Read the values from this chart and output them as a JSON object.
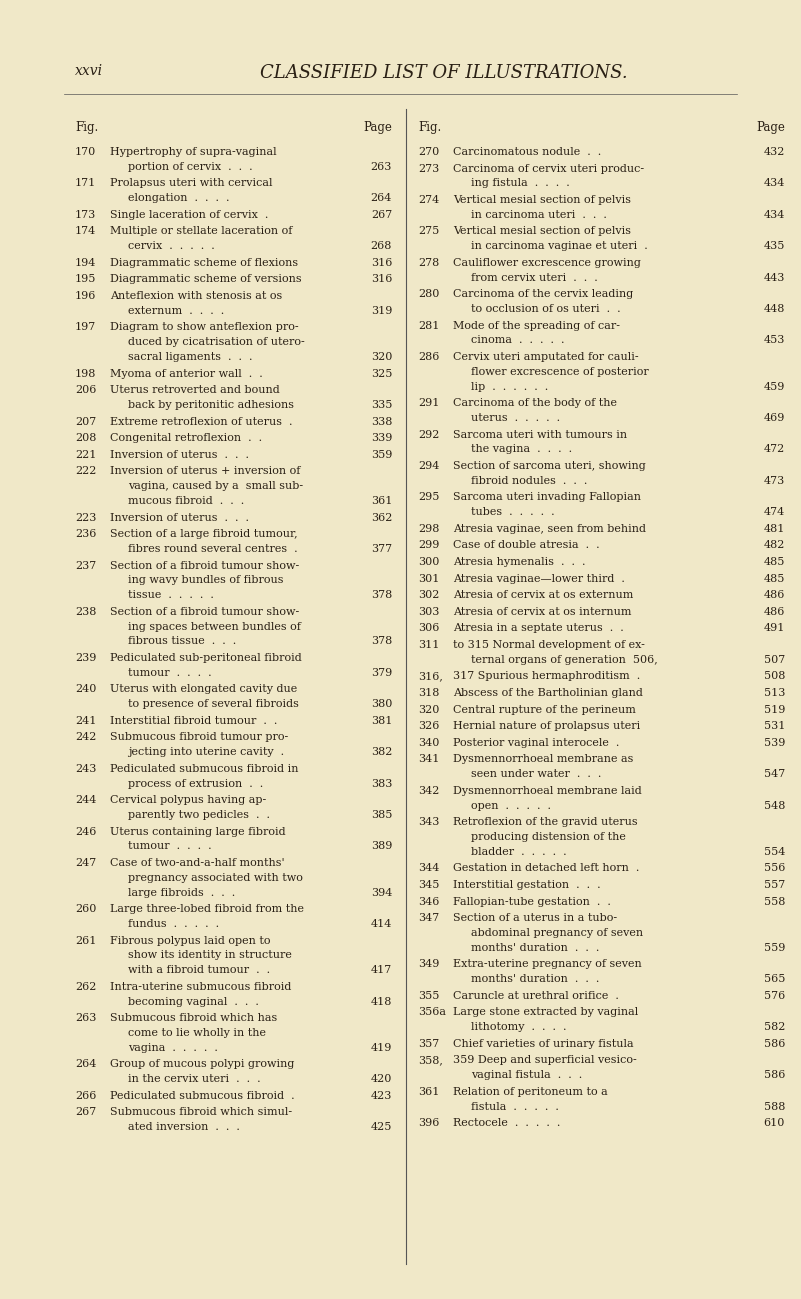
{
  "background_color": "#f0e8c8",
  "page_header_left": "xxvi",
  "page_header_center": "CLASSIFIED LIST OF ILLUSTRATIONS.",
  "left_entries": [
    [
      "170",
      "Hypertrophy of supra-vaginal\nportion of cervix  .  .  .",
      "263"
    ],
    [
      "171",
      "Prolapsus uteri with cervical\nelongation  .  .  .  .",
      "264"
    ],
    [
      "173",
      "Single laceration of cervix  .",
      "267"
    ],
    [
      "174",
      "Multiple or stellate laceration of\ncervix  .  .  .  .  .",
      "268"
    ],
    [
      "194",
      "Diagrammatic scheme of flexions",
      "316"
    ],
    [
      "195",
      "Diagrammatic scheme of versions",
      "316"
    ],
    [
      "196",
      "Anteflexion with stenosis at os\nexternum  .  .  .  .",
      "319"
    ],
    [
      "197",
      "Diagram to show anteflexion pro-\nduced by cicatrisation of utero-\nsacral ligaments  .  .  .",
      "320"
    ],
    [
      "198",
      "Myoma of anterior wall  .  .",
      "325"
    ],
    [
      "206",
      "Uterus retroverted and bound\nback by peritonitic adhesions",
      "335"
    ],
    [
      "207",
      "Extreme retroflexion of uterus  .",
      "338"
    ],
    [
      "208",
      "Congenital retroflexion  .  .",
      "339"
    ],
    [
      "221",
      "Inversion of uterus  .  .  .",
      "359"
    ],
    [
      "222",
      "Inversion of uterus + inversion of\nvagina, caused by a  small sub-\nmucous fibroid  .  .  .",
      "361"
    ],
    [
      "223",
      "Inversion of uterus  .  .  .",
      "362"
    ],
    [
      "236",
      "Section of a large fibroid tumour,\nfibres round several centres  .",
      "377"
    ],
    [
      "237",
      "Section of a fibroid tumour show-\ning wavy bundles of fibrous\ntissue  .  .  .  .  .",
      "378"
    ],
    [
      "238",
      "Section of a fibroid tumour show-\ning spaces between bundles of\nfibrous tissue  .  .  .",
      "378"
    ],
    [
      "239",
      "Pediculated sub-peritoneal fibroid\ntumour  .  .  .  .",
      "379"
    ],
    [
      "240",
      "Uterus with elongated cavity due\nto presence of several fibroids",
      "380"
    ],
    [
      "241",
      "Interstitial fibroid tumour  .  .",
      "381"
    ],
    [
      "242",
      "Submucous fibroid tumour pro-\njecting into uterine cavity  .",
      "382"
    ],
    [
      "243",
      "Pediculated submucous fibroid in\nprocess of extrusion  .  .",
      "383"
    ],
    [
      "244",
      "Cervical polypus having ap-\nparently two pedicles  .  .",
      "385"
    ],
    [
      "246",
      "Uterus containing large fibroid\ntumour  .  .  .  .",
      "389"
    ],
    [
      "247",
      "Case of two-and-a-half months'\npregnancy associated with two\nlarge fibroids  .  .  .",
      "394"
    ],
    [
      "260",
      "Large three-lobed fibroid from the\nfundus  .  .  .  .  .",
      "414"
    ],
    [
      "261",
      "Fibrous polypus laid open to\nshow its identity in structure\nwith a fibroid tumour  .  .",
      "417"
    ],
    [
      "262",
      "Intra-uterine submucous fibroid\nbecoming vaginal  .  .  .",
      "418"
    ],
    [
      "263",
      "Submucous fibroid which has\ncome to lie wholly in the\nvagina  .  .  .  .  .",
      "419"
    ],
    [
      "264",
      "Group of mucous polypi growing\nin the cervix uteri  .  .  .",
      "420"
    ],
    [
      "266",
      "Pediculated submucous fibroid  .",
      "423"
    ],
    [
      "267",
      "Submucous fibroid which simul-\nated inversion  .  .  .",
      "425"
    ]
  ],
  "right_entries": [
    [
      "270",
      "Carcinomatous nodule  .  .",
      "432"
    ],
    [
      "273",
      "Carcinoma of cervix uteri produc-\ning fistula  .  .  .  .",
      "434"
    ],
    [
      "274",
      "Vertical mesial section of pelvis\nin carcinoma uteri  .  .  .",
      "434"
    ],
    [
      "275",
      "Vertical mesial section of pelvis\nin carcinoma vaginae et uteri  .",
      "435"
    ],
    [
      "278",
      "Cauliflower excrescence growing\nfrom cervix uteri  .  .  .",
      "443"
    ],
    [
      "280",
      "Carcinoma of the cervix leading\nto occlusion of os uteri  .  .",
      "448"
    ],
    [
      "281",
      "Mode of the spreading of car-\ncinoma  .  .  .  .  .",
      "453"
    ],
    [
      "286",
      "Cervix uteri amputated for cauli-\nflower excrescence of posterior\nlip  .  .  .  .  .  .",
      "459"
    ],
    [
      "291",
      "Carcinoma of the body of the\nuterus  .  .  .  .  .",
      "469"
    ],
    [
      "292",
      "Sarcoma uteri with tumours in\nthe vagina  .  .  .  .",
      "472"
    ],
    [
      "294",
      "Section of sarcoma uteri, showing\nfibroid nodules  .  .  .",
      "473"
    ],
    [
      "295",
      "Sarcoma uteri invading Fallopian\ntubes  .  .  .  .  .",
      "474"
    ],
    [
      "298",
      "Atresia vaginae, seen from behind",
      "481"
    ],
    [
      "299",
      "Case of double atresia  .  .",
      "482"
    ],
    [
      "300",
      "Atresia hymenalis  .  .  .",
      "485"
    ],
    [
      "301",
      "Atresia vaginae—lower third  .",
      "485"
    ],
    [
      "302",
      "Atresia of cervix at os externum",
      "486"
    ],
    [
      "303",
      "Atresia of cervix at os internum",
      "486"
    ],
    [
      "306",
      "Atresia in a septate uterus  .  .",
      "491"
    ],
    [
      "311",
      "to 315 Normal development of ex-\nternal organs of generation  506,",
      "507"
    ],
    [
      "316,",
      "317 Spurious hermaphroditism  .",
      "508"
    ],
    [
      "318",
      "Abscess of the Bartholinian gland",
      "513"
    ],
    [
      "320",
      "Central rupture of the perineum",
      "519"
    ],
    [
      "326",
      "Hernial nature of prolapsus uteri",
      "531"
    ],
    [
      "340",
      "Posterior vaginal interocele  .",
      "539"
    ],
    [
      "341",
      "Dysmennorrhoeal membrane as\nseen under water  .  .  .",
      "547"
    ],
    [
      "342",
      "Dysmennorrhoeal membrane laid\nopen  .  .  .  .  .",
      "548"
    ],
    [
      "343",
      "Retroflexion of the gravid uterus\nproducing distension of the\nbladder  .  .  .  .  .",
      "554"
    ],
    [
      "344",
      "Gestation in detached left horn  .",
      "556"
    ],
    [
      "345",
      "Interstitial gestation  .  .  .",
      "557"
    ],
    [
      "346",
      "Fallopian-tube gestation  .  .",
      "558"
    ],
    [
      "347",
      "Section of a uterus in a tubo-\nabdominal pregnancy of seven\nmonths' duration  .  .  .",
      "559"
    ],
    [
      "349",
      "Extra-uterine pregnancy of seven\nmonths' duration  .  .  .",
      "565"
    ],
    [
      "355",
      "Caruncle at urethral orifice  .",
      "576"
    ],
    [
      "356a",
      "Large stone extracted by vaginal\nlithotomy  .  .  .  .",
      "582"
    ],
    [
      "357",
      "Chief varieties of urinary fistula",
      "586"
    ],
    [
      "358,",
      "359 Deep and superficial vesico-\nvaginal fistula  .  .  .",
      "586"
    ],
    [
      "361",
      "Relation of peritoneum to a\nfistula  .  .  .  .  .",
      "588"
    ],
    [
      "396",
      "Rectocele  .  .  .  .  .",
      "610"
    ]
  ]
}
